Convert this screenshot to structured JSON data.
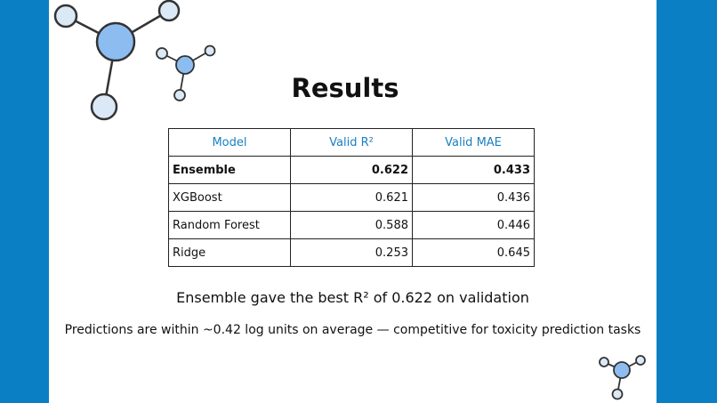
{
  "title": "Results",
  "table": {
    "header": [
      "Model",
      "Valid R²",
      "Valid MAE"
    ],
    "rows": [
      [
        "Ensemble",
        "0.622",
        "0.433"
      ],
      [
        "XGBoost",
        "0.621",
        "0.436"
      ],
      [
        "Random Forest",
        "0.588",
        "0.446"
      ],
      [
        "Ridge",
        "0.253",
        "0.645"
      ]
    ]
  },
  "captions": [
    "Ensemble gave the best R² of 0.622 on validation",
    "Predictions are within ~0.42 log units on average — competitive for toxicity prediction tasks"
  ]
}
